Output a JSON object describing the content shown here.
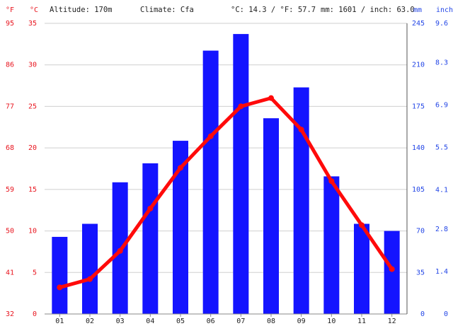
{
  "chart_data": {
    "type": "bar_line",
    "header": {
      "altitude": "Altitude: 170m",
      "climate": "Climate: Cfa",
      "temperature": "°C: 14.3 / °F: 57.7",
      "precipitation": "mm: 1601 / inch: 63.0"
    },
    "units": {
      "f": "°F",
      "c": "°C",
      "mm": "mm",
      "inch": "inch"
    },
    "categories": [
      "01",
      "02",
      "03",
      "04",
      "05",
      "06",
      "07",
      "08",
      "09",
      "10",
      "11",
      "12"
    ],
    "bars": {
      "color": "#1414ff",
      "axis": "y2",
      "values": [
        65,
        76,
        111,
        127,
        146,
        222,
        236,
        165,
        191,
        116,
        76,
        70
      ]
    },
    "line": {
      "color": "#ff0a0a",
      "axis": "y",
      "values": [
        3.2,
        4.2,
        7.6,
        12.7,
        17.6,
        21.4,
        25.0,
        26.0,
        22.2,
        16.0,
        10.7,
        5.4
      ]
    },
    "ylim": [
      0,
      35
    ],
    "yticks": [
      0,
      5,
      10,
      15,
      20,
      25,
      30,
      35
    ],
    "yflim": [
      32,
      95
    ],
    "yfticks": [
      32,
      41,
      50,
      59,
      68,
      77,
      86,
      95
    ],
    "y2lim": [
      0,
      245
    ],
    "y2ticks": [
      0,
      35,
      70,
      105,
      140,
      175,
      210,
      245
    ],
    "yinlim": [
      0,
      9.6
    ],
    "yinticks": [
      0,
      1.4,
      2.8,
      4.1,
      5.5,
      6.9,
      8.3,
      9.6
    ],
    "grid": true
  }
}
